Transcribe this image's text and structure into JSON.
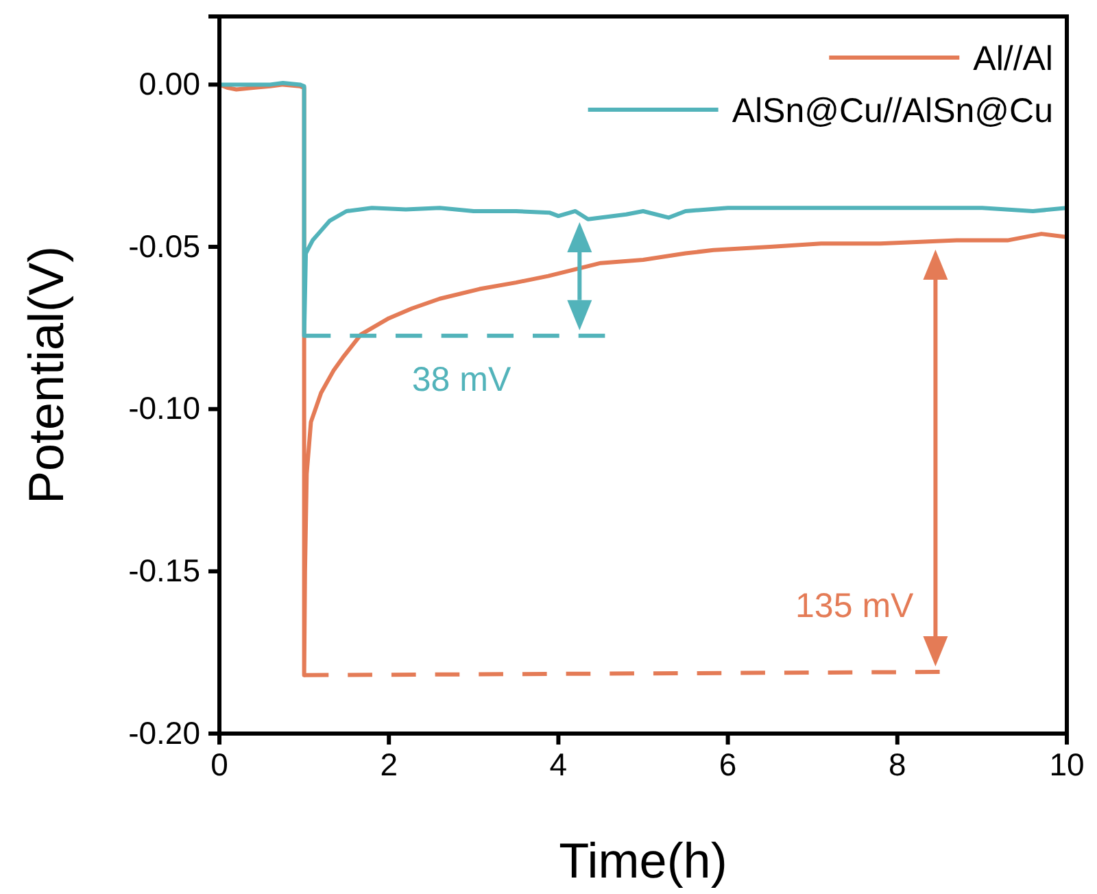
{
  "chart_data": {
    "type": "line",
    "xlabel": "Time(h)",
    "ylabel": "Potential(V)",
    "xlim": [
      0,
      10
    ],
    "xticks": [
      0,
      2,
      4,
      6,
      8,
      10
    ],
    "ylim": [
      -0.2,
      0.021
    ],
    "yticks": [
      {
        "value": -0.2,
        "label": "-0.20"
      },
      {
        "value": -0.15,
        "label": "-0.15"
      },
      {
        "value": -0.1,
        "label": "-0.10"
      },
      {
        "value": -0.05,
        "label": "-0.05"
      },
      {
        "value": 0,
        "label": "0.00"
      }
    ],
    "grid": false,
    "legend": "top right",
    "marker": "none",
    "series": [
      {
        "name": "Al//Al",
        "color": "#e47b56",
        "line_style": "solid",
        "x": [
          0,
          0.1,
          0.2,
          0.4,
          0.6,
          0.75,
          0.95,
          1.0,
          1.0,
          1.01,
          1.03,
          1.08,
          1.2,
          1.35,
          1.46,
          1.67,
          2.0,
          2.27,
          2.6,
          3.07,
          3.5,
          3.88,
          4.5,
          5.0,
          5.5,
          5.83,
          6.5,
          7.1,
          7.8,
          8.7,
          9.3,
          9.7,
          10
        ],
        "values": [
          0,
          -0.001,
          -0.0015,
          -0.001,
          -0.0005,
          0,
          -0.0005,
          -0.001,
          -0.182,
          -0.15,
          -0.12,
          -0.104,
          -0.095,
          -0.088,
          -0.084,
          -0.077,
          -0.072,
          -0.069,
          -0.066,
          -0.063,
          -0.061,
          -0.059,
          -0.055,
          -0.054,
          -0.052,
          -0.051,
          -0.05,
          -0.049,
          -0.049,
          -0.048,
          -0.048,
          -0.046,
          -0.047
        ]
      },
      {
        "name": "AlSn@Cu//AlSn@Cu",
        "color": "#52b3ba",
        "line_style": "solid",
        "x": [
          0,
          0.3,
          0.6,
          0.75,
          0.95,
          1.0,
          1.0,
          1.02,
          1.1,
          1.2,
          1.3,
          1.5,
          1.8,
          2.2,
          2.6,
          3.0,
          3.5,
          3.9,
          4.0,
          4.2,
          4.35,
          4.8,
          5.0,
          5.3,
          5.5,
          6.0,
          7.0,
          8.0,
          9.0,
          9.6,
          10
        ],
        "values": [
          0,
          0,
          0,
          0.0005,
          0,
          -0.0005,
          -0.0774,
          -0.052,
          -0.048,
          -0.045,
          -0.042,
          -0.039,
          -0.038,
          -0.0385,
          -0.038,
          -0.039,
          -0.039,
          -0.0395,
          -0.0405,
          -0.039,
          -0.0415,
          -0.04,
          -0.039,
          -0.041,
          -0.039,
          -0.038,
          -0.038,
          -0.038,
          -0.038,
          -0.039,
          -0.038
        ]
      },
      {
        "color": "#e47b56",
        "line_style": "dashed",
        "x": [
          1,
          8.5
        ],
        "values": [
          -0.182,
          -0.181
        ]
      },
      {
        "color": "#52b3ba",
        "line_style": "dashed",
        "x": [
          1,
          4.55
        ],
        "values": [
          -0.0774,
          -0.0774
        ]
      }
    ],
    "annotations": [
      {
        "text": "135 mV",
        "x": 8.45,
        "y": -0.181
      },
      {
        "text": "38 mV",
        "x": 4.25,
        "y": -0.0774
      }
    ]
  }
}
